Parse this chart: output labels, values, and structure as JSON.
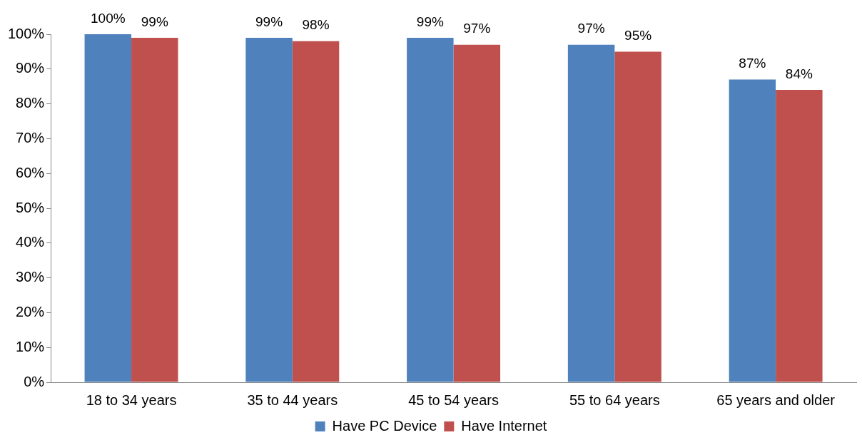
{
  "chart_data": {
    "type": "bar",
    "categories": [
      "18 to 34 years",
      "35 to 44 years",
      "45 to 54 years",
      "55 to 64 years",
      "65 years and older"
    ],
    "series": [
      {
        "name": "Have PC Device",
        "color": "#4f81bd",
        "values": [
          100,
          99,
          99,
          97,
          87
        ],
        "value_labels": [
          "100%",
          "99%",
          "99%",
          "97%",
          "87%"
        ]
      },
      {
        "name": "Have Internet",
        "color": "#c0504d",
        "values": [
          99,
          98,
          97,
          95,
          84
        ],
        "value_labels": [
          "99%",
          "98%",
          "97%",
          "95%",
          "84%"
        ]
      }
    ],
    "ylim": [
      0,
      100
    ],
    "yticks": [
      {
        "value": 0,
        "label": "0%"
      },
      {
        "value": 10,
        "label": "10%"
      },
      {
        "value": 20,
        "label": "20%"
      },
      {
        "value": 30,
        "label": "30%"
      },
      {
        "value": 40,
        "label": "40%"
      },
      {
        "value": 50,
        "label": "50%"
      },
      {
        "value": 60,
        "label": "60%"
      },
      {
        "value": 70,
        "label": "70%"
      },
      {
        "value": 80,
        "label": "80%"
      },
      {
        "value": 90,
        "label": "90%"
      },
      {
        "value": 100,
        "label": "100%"
      }
    ],
    "grid": false,
    "legend": "bottom"
  }
}
